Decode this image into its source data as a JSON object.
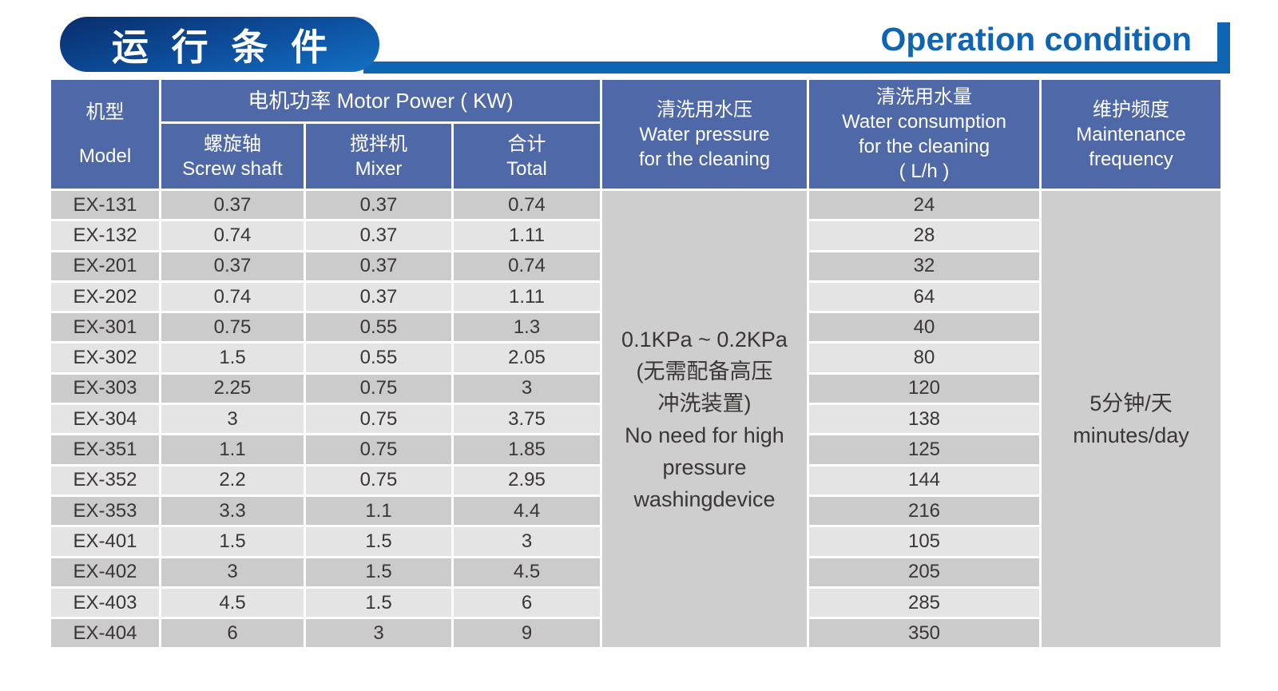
{
  "header": {
    "badge_zh": "运 行 条 件",
    "title_en": "Operation condition"
  },
  "colors": {
    "accent_blue": "#1065b3",
    "table_header_blue": "#4f68a7",
    "row_dark": "#cbcbcb",
    "row_light": "#e4e4e4",
    "merged_gray": "#cecece"
  },
  "table": {
    "col_model": {
      "zh": "机型",
      "en": "Model"
    },
    "col_power": "电机功率  Motor Power ( KW)",
    "col_screw": {
      "zh": "螺旋轴",
      "en": "Screw shaft"
    },
    "col_mixer": {
      "zh": "搅拌机",
      "en": "Mixer"
    },
    "col_total": {
      "zh": "合计",
      "en": "Total"
    },
    "col_pressure": {
      "zh": "清洗用水压",
      "en1": "Water pressure",
      "en2": "for the cleaning"
    },
    "col_consumption": {
      "zh": "清洗用水量",
      "en1": "Water consumption",
      "en2": "for the cleaning",
      "en3": "( L/h )"
    },
    "col_maintenance": {
      "zh": "维护频度",
      "en1": "Maintenance",
      "en2": "frequency"
    },
    "pressure_cell": {
      "line1": "0.1KPa ~ 0.2KPa",
      "line2": "(无需配备高压",
      "line3": "冲洗装置)",
      "line4": "No need for high",
      "line5": "pressure",
      "line6": "washingdevice"
    },
    "maintenance_cell": {
      "line1": "5分钟/天",
      "line2": "minutes/day"
    },
    "rows": [
      {
        "model": "EX-131",
        "screw": "0.37",
        "mixer": "0.37",
        "total": "0.74",
        "water": "24"
      },
      {
        "model": "EX-132",
        "screw": "0.74",
        "mixer": "0.37",
        "total": "1.11",
        "water": "28"
      },
      {
        "model": "EX-201",
        "screw": "0.37",
        "mixer": "0.37",
        "total": "0.74",
        "water": "32"
      },
      {
        "model": "EX-202",
        "screw": "0.74",
        "mixer": "0.37",
        "total": "1.11",
        "water": "64"
      },
      {
        "model": "EX-301",
        "screw": "0.75",
        "mixer": "0.55",
        "total": "1.3",
        "water": "40"
      },
      {
        "model": "EX-302",
        "screw": "1.5",
        "mixer": "0.55",
        "total": "2.05",
        "water": "80"
      },
      {
        "model": "EX-303",
        "screw": "2.25",
        "mixer": "0.75",
        "total": "3",
        "water": "120"
      },
      {
        "model": "EX-304",
        "screw": "3",
        "mixer": "0.75",
        "total": "3.75",
        "water": "138"
      },
      {
        "model": "EX-351",
        "screw": "1.1",
        "mixer": "0.75",
        "total": "1.85",
        "water": "125"
      },
      {
        "model": "EX-352",
        "screw": "2.2",
        "mixer": "0.75",
        "total": "2.95",
        "water": "144"
      },
      {
        "model": "EX-353",
        "screw": "3.3",
        "mixer": "1.1",
        "total": "4.4",
        "water": "216"
      },
      {
        "model": "EX-401",
        "screw": "1.5",
        "mixer": "1.5",
        "total": "3",
        "water": "105"
      },
      {
        "model": "EX-402",
        "screw": "3",
        "mixer": "1.5",
        "total": "4.5",
        "water": "205"
      },
      {
        "model": "EX-403",
        "screw": "4.5",
        "mixer": "1.5",
        "total": "6",
        "water": "285"
      },
      {
        "model": "EX-404",
        "screw": "6",
        "mixer": "3",
        "total": "9",
        "water": "350"
      }
    ]
  }
}
